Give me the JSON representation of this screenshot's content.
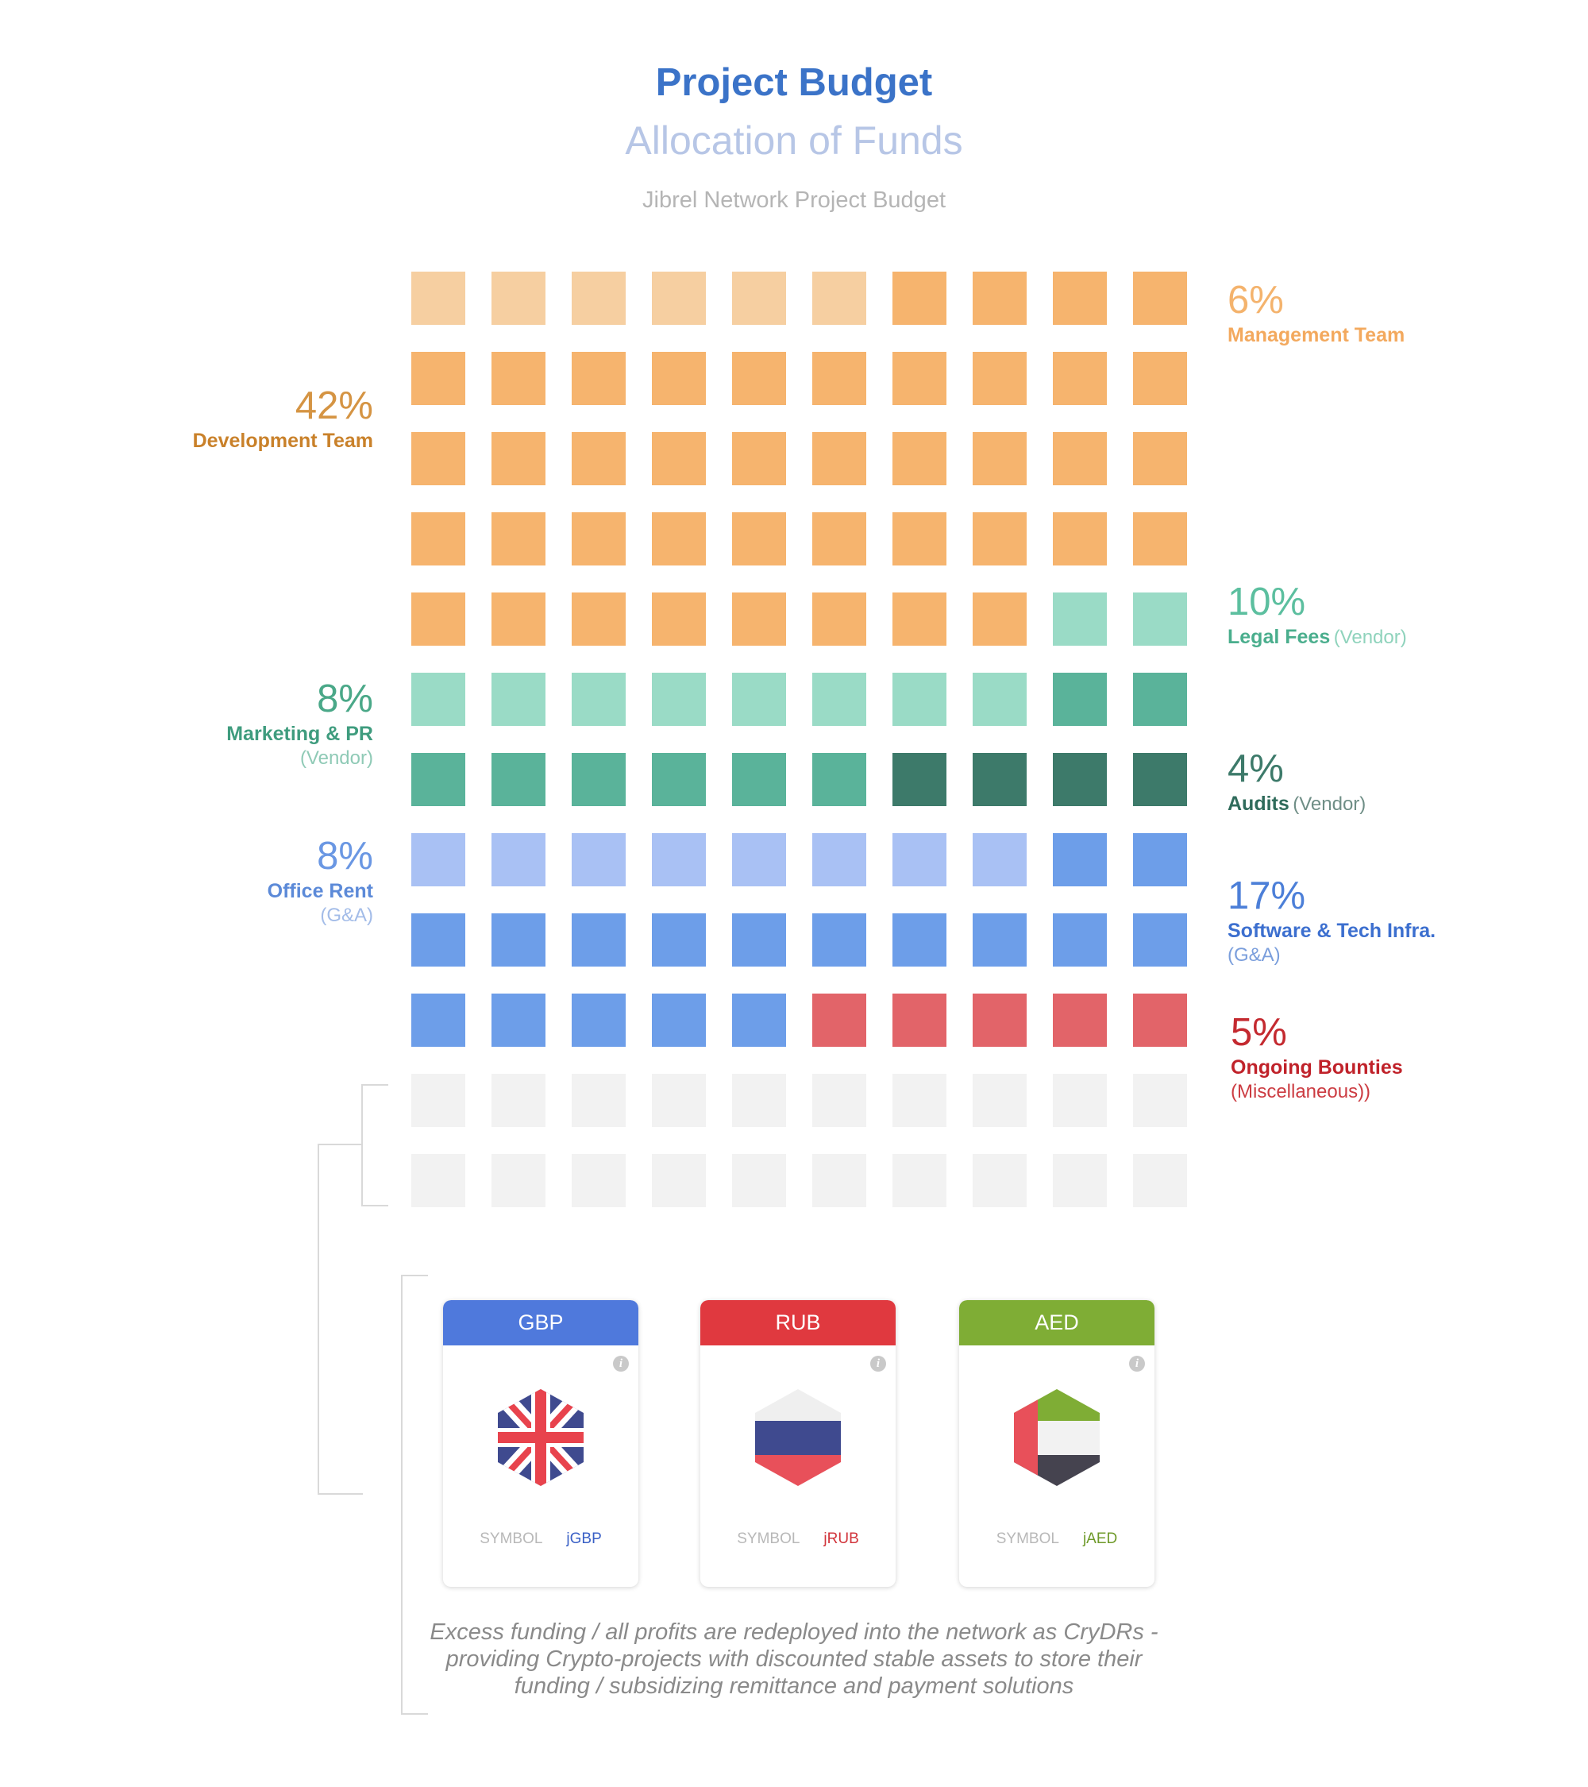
{
  "header": {
    "title": "Project Budget",
    "subtitle": "Allocation of Funds",
    "chart_title": "Jibrel Network Project Budget"
  },
  "colors": {
    "management": "#f6cfa1",
    "development": "#f6b46e",
    "legal": "#9adbc6",
    "marketing": "#5ab39a",
    "audits": "#3d7a6a",
    "office": "#a9c1f4",
    "software": "#6d9ee9",
    "bounties": "#e26469",
    "empty": "#f2f2f2"
  },
  "chart_data": {
    "type": "waffle",
    "title": "Jibrel Network Project Budget",
    "grid": {
      "rows": 12,
      "cols": 10
    },
    "unit": "%",
    "series": [
      {
        "key": "management",
        "pct": "6%",
        "value": 6,
        "name": "Management Team",
        "sub": "",
        "side": "right"
      },
      {
        "key": "development",
        "pct": "42%",
        "value": 42,
        "name": "Development Team",
        "sub": "",
        "side": "left"
      },
      {
        "key": "legal",
        "pct": "10%",
        "value": 10,
        "name": "Legal Fees",
        "sub": "(Vendor)",
        "side": "right"
      },
      {
        "key": "marketing",
        "pct": "8%",
        "value": 8,
        "name": "Marketing & PR",
        "sub": "(Vendor)",
        "side": "left"
      },
      {
        "key": "audits",
        "pct": "4%",
        "value": 4,
        "name": "Audits",
        "sub": "(Vendor)",
        "side": "right"
      },
      {
        "key": "office",
        "pct": "8%",
        "value": 8,
        "name": "Office Rent",
        "sub": "(G&A)",
        "side": "left"
      },
      {
        "key": "software",
        "pct": "17%",
        "value": 17,
        "name": "Software & Tech Infra.",
        "sub": "(G&A)",
        "side": "right"
      },
      {
        "key": "bounties",
        "pct": "5%",
        "value": 5,
        "name": "Ongoing Bounties",
        "sub": "(Miscellaneous))",
        "side": "right"
      }
    ],
    "remaining_cells": 20
  },
  "cards": [
    {
      "currency": "GBP",
      "symbol_label": "SYMBOL",
      "symbol": "jGBP",
      "color": "#4f79dc",
      "symbol_color": "#3a60c6",
      "icon": "uk-flag-icon"
    },
    {
      "currency": "RUB",
      "symbol_label": "SYMBOL",
      "symbol": "jRUB",
      "color": "#e0393f",
      "symbol_color": "#d1343b",
      "icon": "russia-flag-icon"
    },
    {
      "currency": "AED",
      "symbol_label": "SYMBOL",
      "symbol": "jAED",
      "color": "#7fad35",
      "symbol_color": "#6f9a2a",
      "icon": "uae-flag-icon"
    }
  ],
  "footnote": "Excess funding / all profits are redeployed into the network as CryDRs - providing Crypto-projects with discounted stable assets to store their funding / subsidizing remittance and payment solutions"
}
